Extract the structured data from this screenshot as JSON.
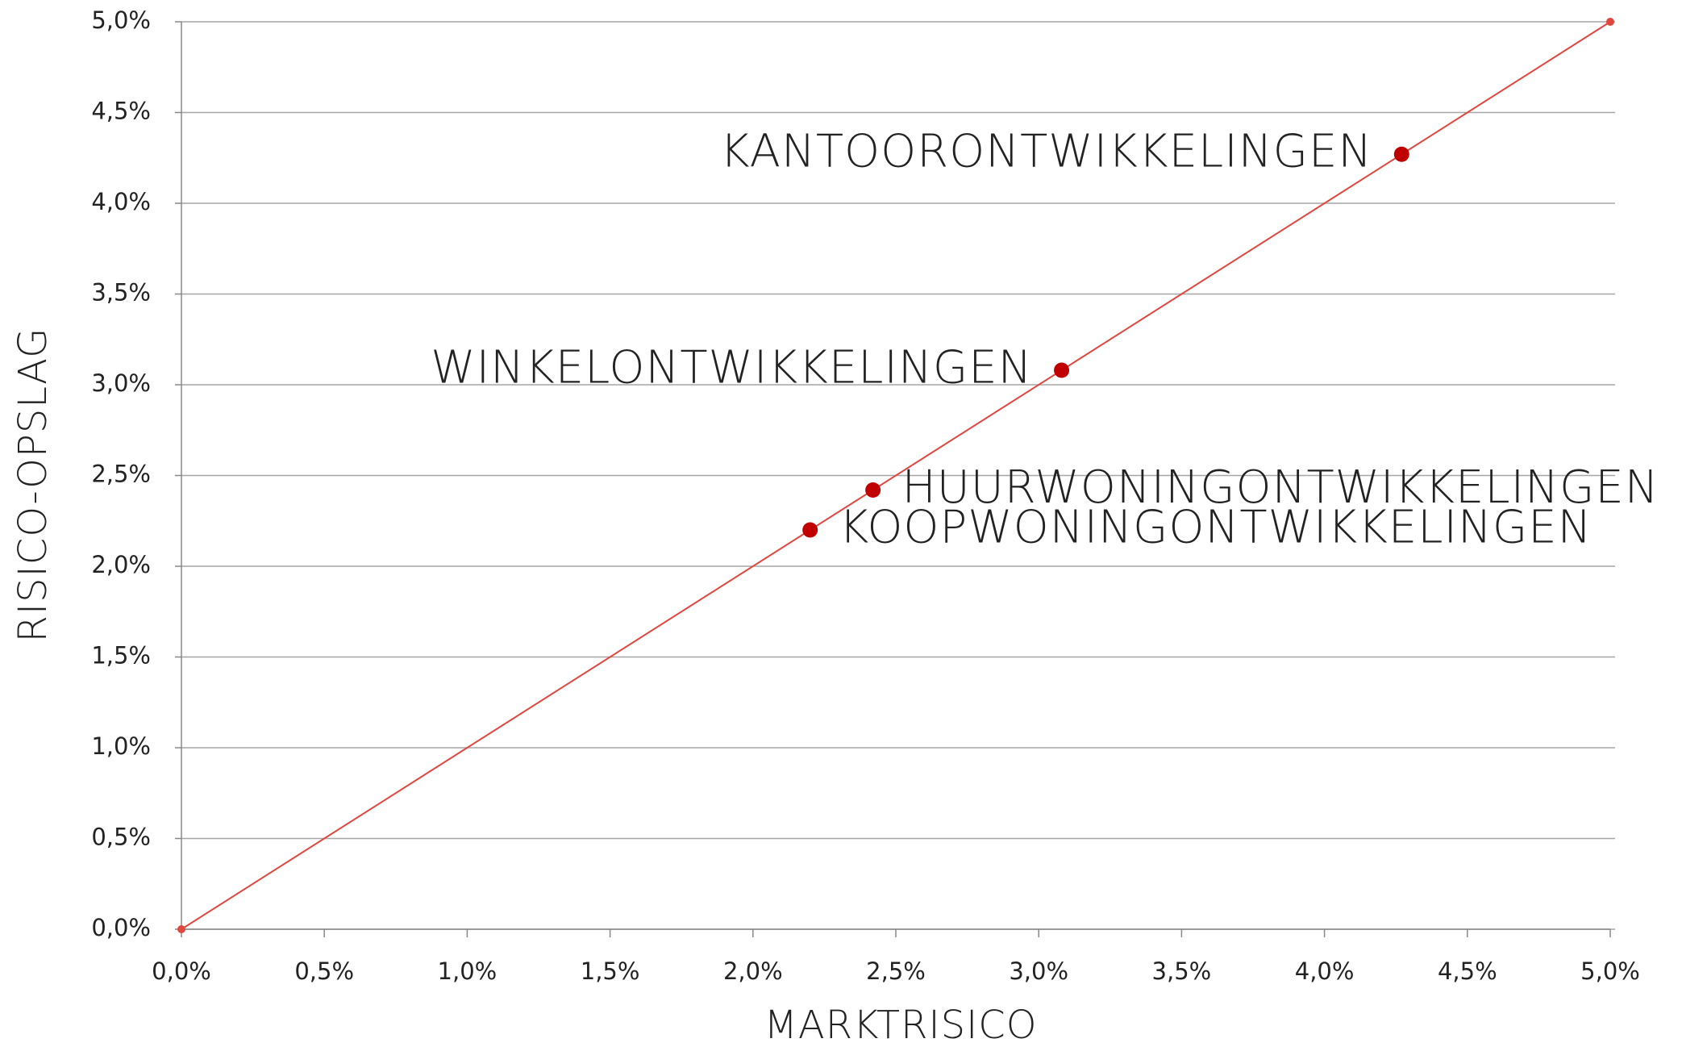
{
  "chart_data": {
    "type": "scatter",
    "x_label": "MARKTRISICO",
    "y_label": "RISICO-OPSLAG",
    "points": {
      "color": "#c00000",
      "labels": [
        "KANTOORONTWIKKELINGEN",
        "WINKELONTWIKKELINGEN",
        "HUURWONINGONTWIKKELINGEN",
        "KOOPWONINGONTWIKKELINGEN"
      ],
      "x": [
        4.27,
        3.08,
        2.42,
        2.2
      ],
      "y": [
        4.27,
        3.08,
        2.42,
        2.2
      ]
    },
    "reference_line": {
      "color": "#e0473f",
      "x": [
        0,
        5
      ],
      "y": [
        0,
        5
      ]
    },
    "xlim": [
      0,
      5
    ],
    "ylim": [
      0,
      5
    ],
    "xticks": [
      {
        "value": 0,
        "label": "0,0%"
      },
      {
        "value": 0.5,
        "label": "0,5%"
      },
      {
        "value": 1,
        "label": "1,0%"
      },
      {
        "value": 1.5,
        "label": "1,5%"
      },
      {
        "value": 2,
        "label": "2,0%"
      },
      {
        "value": 2.5,
        "label": "2,5%"
      },
      {
        "value": 3,
        "label": "3,0%"
      },
      {
        "value": 3.5,
        "label": "3,5%"
      },
      {
        "value": 4,
        "label": "4,0%"
      },
      {
        "value": 4.5,
        "label": "4,5%"
      },
      {
        "value": 5,
        "label": "5,0%"
      }
    ],
    "yticks": [
      {
        "value": 0,
        "label": "0,0%"
      },
      {
        "value": 0.5,
        "label": "0,5%"
      },
      {
        "value": 1,
        "label": "1,0%"
      },
      {
        "value": 1.5,
        "label": "1,5%"
      },
      {
        "value": 2,
        "label": "2,0%"
      },
      {
        "value": 2.5,
        "label": "2,5%"
      },
      {
        "value": 3,
        "label": "3,0%"
      },
      {
        "value": 3.5,
        "label": "3,5%"
      },
      {
        "value": 4,
        "label": "4,0%"
      },
      {
        "value": 4.5,
        "label": "4,5%"
      },
      {
        "value": 5,
        "label": "5,0%"
      }
    ],
    "grid": true
  }
}
